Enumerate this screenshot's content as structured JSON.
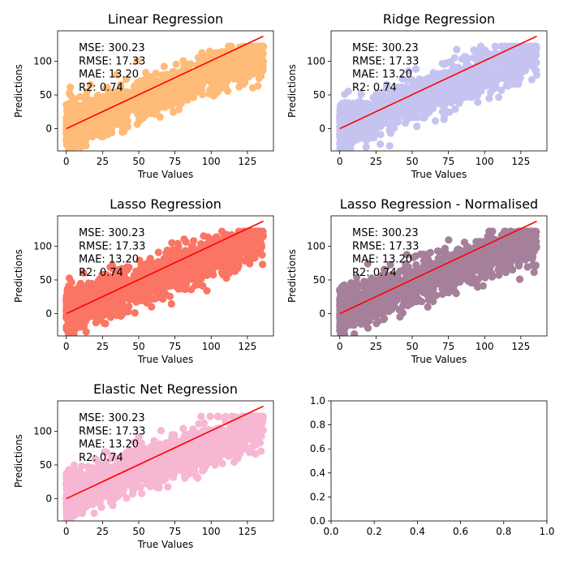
{
  "figure": {
    "background": "#ffffff"
  },
  "charts": [
    {
      "id": "linear",
      "title": "Linear Regression",
      "xlabel": "True Values",
      "ylabel": "Predictions",
      "color": "#ffbb78",
      "seed": 11,
      "metrics": [
        "MSE: 300.23",
        "RMSE: 17.33",
        "MAE: 13.20",
        "R2: 0.74"
      ]
    },
    {
      "id": "ridge",
      "title": "Ridge Regression",
      "xlabel": "True Values",
      "ylabel": "Predictions",
      "color": "#c5c4f0",
      "seed": 23,
      "metrics": [
        "MSE: 300.23",
        "RMSE: 17.33",
        "MAE: 13.20",
        "R2: 0.74"
      ]
    },
    {
      "id": "lasso",
      "title": "Lasso Regression",
      "xlabel": "True Values",
      "ylabel": "Predictions",
      "color": "#fa7564",
      "seed": 37,
      "metrics": [
        "MSE: 300.23",
        "RMSE: 17.33",
        "MAE: 13.20",
        "R2: 0.74"
      ]
    },
    {
      "id": "lasso-normalised",
      "title": "Lasso Regression - Normalised",
      "xlabel": "True Values",
      "ylabel": "Predictions",
      "color": "#a6809a",
      "seed": 41,
      "metrics": [
        "MSE: 300.23",
        "RMSE: 17.33",
        "MAE: 13.20",
        "R2: 0.74"
      ]
    },
    {
      "id": "elastic-net",
      "title": "Elastic Net Regression",
      "xlabel": "True Values",
      "ylabel": "Predictions",
      "color": "#f7b6d2",
      "seed": 53,
      "metrics": [
        "MSE: 300.23",
        "RMSE: 17.33",
        "MAE: 13.20",
        "R2: 0.74"
      ]
    }
  ],
  "chart_data": [
    {
      "type": "scatter",
      "title": "Linear Regression",
      "xlabel": "True Values",
      "ylabel": "Predictions",
      "xlim": [
        -6,
        143
      ],
      "ylim": [
        -33,
        145
      ],
      "xticks": [
        0,
        25,
        50,
        75,
        100,
        125
      ],
      "yticks": [
        0,
        50,
        100
      ],
      "series": [
        {
          "kind": "scatter",
          "color": "#ffbb78",
          "description_range": {
            "x": [
              0,
              136
            ],
            "y": [
              -30,
              122
            ]
          }
        },
        {
          "kind": "line",
          "color": "#ff0000",
          "x": [
            0,
            136
          ],
          "y": [
            0,
            137
          ]
        }
      ],
      "annotations": [
        "MSE: 300.23",
        "RMSE: 17.33",
        "MAE: 13.20",
        "R2: 0.74"
      ]
    },
    {
      "type": "scatter",
      "title": "Ridge Regression",
      "xlabel": "True Values",
      "ylabel": "Predictions",
      "xlim": [
        -6,
        143
      ],
      "ylim": [
        -33,
        145
      ],
      "xticks": [
        0,
        25,
        50,
        75,
        100,
        125
      ],
      "yticks": [
        0,
        50,
        100
      ],
      "series": [
        {
          "kind": "scatter",
          "color": "#c5c4f0",
          "description_range": {
            "x": [
              0,
              136
            ],
            "y": [
              -30,
              122
            ]
          }
        },
        {
          "kind": "line",
          "color": "#ff0000",
          "x": [
            0,
            136
          ],
          "y": [
            0,
            137
          ]
        }
      ],
      "annotations": [
        "MSE: 300.23",
        "RMSE: 17.33",
        "MAE: 13.20",
        "R2: 0.74"
      ]
    },
    {
      "type": "scatter",
      "title": "Lasso Regression",
      "xlabel": "True Values",
      "ylabel": "Predictions",
      "xlim": [
        -6,
        143
      ],
      "ylim": [
        -33,
        145
      ],
      "xticks": [
        0,
        25,
        50,
        75,
        100,
        125
      ],
      "yticks": [
        0,
        50,
        100
      ],
      "series": [
        {
          "kind": "scatter",
          "color": "#fa7564",
          "description_range": {
            "x": [
              0,
              136
            ],
            "y": [
              -30,
              122
            ]
          }
        },
        {
          "kind": "line",
          "color": "#ff0000",
          "x": [
            0,
            136
          ],
          "y": [
            0,
            137
          ]
        }
      ],
      "annotations": [
        "MSE: 300.23",
        "RMSE: 17.33",
        "MAE: 13.20",
        "R2: 0.74"
      ]
    },
    {
      "type": "scatter",
      "title": "Lasso Regression - Normalised",
      "xlabel": "True Values",
      "ylabel": "Predictions",
      "xlim": [
        -6,
        143
      ],
      "ylim": [
        -33,
        145
      ],
      "xticks": [
        0,
        25,
        50,
        75,
        100,
        125
      ],
      "yticks": [
        0,
        50,
        100
      ],
      "series": [
        {
          "kind": "scatter",
          "color": "#a6809a",
          "description_range": {
            "x": [
              0,
              136
            ],
            "y": [
              -30,
              122
            ]
          }
        },
        {
          "kind": "line",
          "color": "#ff0000",
          "x": [
            0,
            136
          ],
          "y": [
            0,
            137
          ]
        }
      ],
      "annotations": [
        "MSE: 300.23",
        "RMSE: 17.33",
        "MAE: 13.20",
        "R2: 0.74"
      ]
    },
    {
      "type": "scatter",
      "title": "Elastic Net Regression",
      "xlabel": "True Values",
      "ylabel": "Predictions",
      "xlim": [
        -6,
        143
      ],
      "ylim": [
        -33,
        145
      ],
      "xticks": [
        0,
        25,
        50,
        75,
        100,
        125
      ],
      "yticks": [
        0,
        50,
        100
      ],
      "series": [
        {
          "kind": "scatter",
          "color": "#f7b6d2",
          "description_range": {
            "x": [
              0,
              136
            ],
            "y": [
              -30,
              122
            ]
          }
        },
        {
          "kind": "line",
          "color": "#ff0000",
          "x": [
            0,
            136
          ],
          "y": [
            0,
            137
          ]
        }
      ],
      "annotations": [
        "MSE: 300.23",
        "RMSE: 17.33",
        "MAE: 13.20",
        "R2: 0.74"
      ]
    },
    {
      "type": "scatter",
      "title": "",
      "xlim": [
        0,
        1
      ],
      "ylim": [
        0,
        1
      ],
      "xticks": [
        0.0,
        0.2,
        0.4,
        0.6,
        0.8,
        1.0
      ],
      "yticks": [
        0.0,
        0.2,
        0.4,
        0.6,
        0.8,
        1.0
      ],
      "xtick_labels": [
        "0.0",
        "0.2",
        "0.4",
        "0.6",
        "0.8",
        "1.0"
      ],
      "ytick_labels": [
        "0.0",
        "0.2",
        "0.4",
        "0.6",
        "0.8",
        "1.0"
      ],
      "series": []
    }
  ]
}
